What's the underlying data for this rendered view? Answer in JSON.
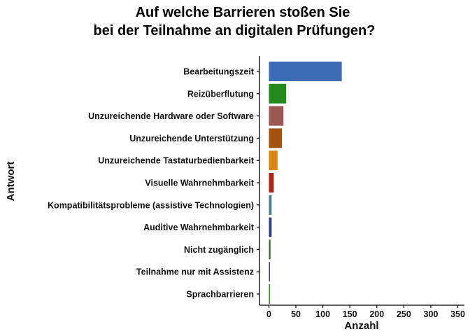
{
  "chart_data": {
    "type": "bar",
    "orientation": "horizontal",
    "title": [
      "Auf welche Barrieren stoßen Sie",
      "bei der Teilnahme an digitalen Prüfungen?"
    ],
    "xlabel": "Anzahl",
    "ylabel": "Antwort",
    "xlim": [
      0,
      350
    ],
    "xticks": [
      0,
      50,
      100,
      150,
      200,
      250,
      300,
      350
    ],
    "grid": false,
    "legend": "none",
    "categories": [
      "Bearbeitungszeit",
      "Reizüberflutung",
      "Unzureichende Hardware oder Software",
      "Unzureichende Unterstützung",
      "Unzureichende Tastaturbedienbarkeit",
      "Visuelle Wahrnehmbarkeit",
      "Kompatibilitätsprobleme (assistive Technologien)",
      "Auditive Wahrnehmbarkeit",
      "Nicht zugänglich",
      "Teilnahme nur mit Assistenz",
      "Sprachbarrieren"
    ],
    "values": [
      135,
      32,
      27,
      24,
      16,
      9,
      5,
      5,
      3,
      2,
      2
    ],
    "colors": [
      "#3b6bb5",
      "#238a1a",
      "#9b5752",
      "#a5520f",
      "#d9860e",
      "#b02518",
      "#4a7d8e",
      "#2a3f7f",
      "#3d6b2e",
      "#4d3778",
      "#2e8a1e"
    ]
  }
}
